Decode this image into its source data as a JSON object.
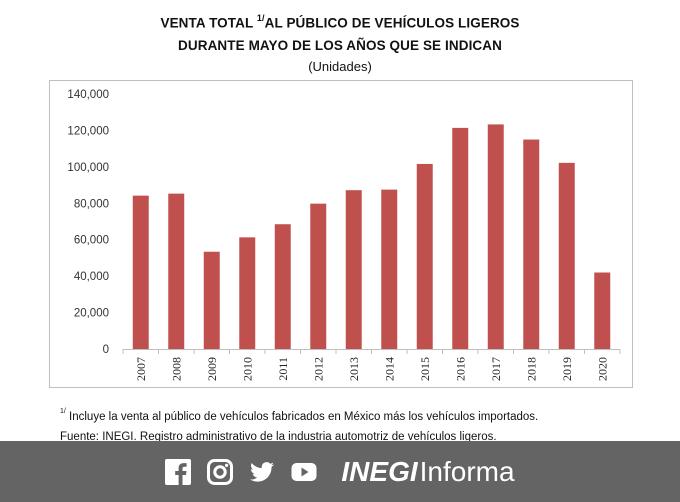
{
  "header": {
    "title_line1_a": "VENTA TOTAL ",
    "title_line1_sup": "1/",
    "title_line1_b": "AL PÚBLICO DE VEHÍCULOS LIGEROS",
    "title_line2": "DURANTE MAYO DE LOS AÑOS QUE SE INDICAN",
    "subtitle": "(Unidades)"
  },
  "chart_data": {
    "type": "bar",
    "categories": [
      "2007",
      "2008",
      "2009",
      "2010",
      "2011",
      "2012",
      "2013",
      "2014",
      "2015",
      "2016",
      "2017",
      "2018",
      "2019",
      "2020"
    ],
    "values": [
      84200,
      85300,
      53400,
      61300,
      68500,
      79800,
      87200,
      87500,
      101600,
      121400,
      123300,
      115000,
      102200,
      42000
    ],
    "ylim": [
      0,
      140000
    ],
    "yticks": [
      "0",
      "20,000",
      "40,000",
      "60,000",
      "80,000",
      "100,000",
      "120,000",
      "140,000"
    ],
    "xlabel": "",
    "ylabel": "",
    "bar_color": "#c0504d",
    "grid": false,
    "legend": "none"
  },
  "notes": {
    "note_sup": "1/",
    "note_text": " Incluye la venta al público de vehículos fabricados en México más los vehículos importados.",
    "source": "Fuente: INEGI. Registro administrativo de la industria automotriz de vehículos ligeros."
  },
  "footer": {
    "brand_bold": "INEGI",
    "brand_light": "Informa",
    "background": "#646464",
    "icons": [
      "facebook-icon",
      "instagram-icon",
      "twitter-icon",
      "youtube-icon"
    ]
  }
}
